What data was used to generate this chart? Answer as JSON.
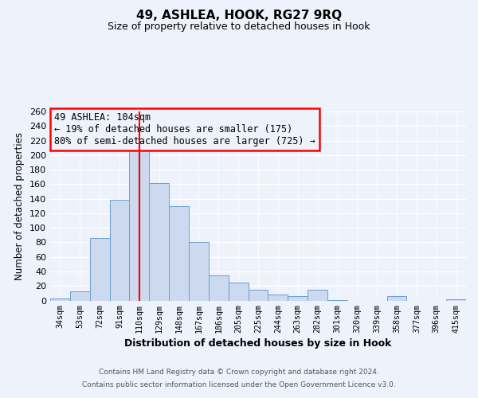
{
  "title": "49, ASHLEA, HOOK, RG27 9RQ",
  "subtitle": "Size of property relative to detached houses in Hook",
  "xlabel": "Distribution of detached houses by size in Hook",
  "ylabel": "Number of detached properties",
  "bar_labels": [
    "34sqm",
    "53sqm",
    "72sqm",
    "91sqm",
    "110sqm",
    "129sqm",
    "148sqm",
    "167sqm",
    "186sqm",
    "205sqm",
    "225sqm",
    "244sqm",
    "263sqm",
    "282sqm",
    "301sqm",
    "320sqm",
    "339sqm",
    "358sqm",
    "377sqm",
    "396sqm",
    "415sqm"
  ],
  "bar_values": [
    3,
    13,
    86,
    138,
    209,
    162,
    130,
    81,
    35,
    25,
    15,
    8,
    6,
    15,
    1,
    0,
    0,
    6,
    0,
    0,
    2
  ],
  "bar_color": "#ccd9ee",
  "bar_edge_color": "#6a9fd4",
  "background_color": "#eef2fb",
  "grid_color": "#ffffff",
  "vline_x": 4.0,
  "vline_color": "red",
  "annotation_title": "49 ASHLEA: 104sqm",
  "annotation_line1": "← 19% of detached houses are smaller (175)",
  "annotation_line2": "80% of semi-detached houses are larger (725) →",
  "annotation_box_color": "red",
  "ylim": [
    0,
    260
  ],
  "yticks": [
    0,
    20,
    40,
    60,
    80,
    100,
    120,
    140,
    160,
    180,
    200,
    220,
    240,
    260
  ],
  "footer1": "Contains HM Land Registry data © Crown copyright and database right 2024.",
  "footer2": "Contains public sector information licensed under the Open Government Licence v3.0."
}
